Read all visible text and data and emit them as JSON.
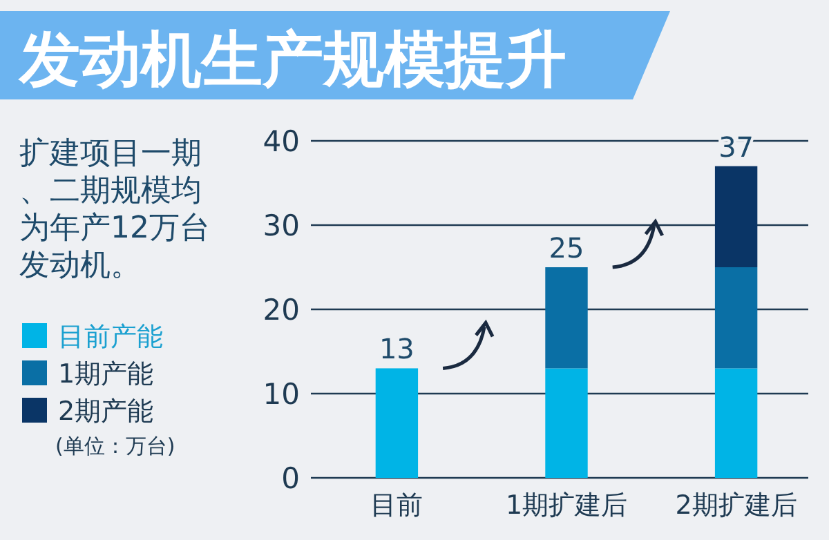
{
  "chart_data": {
    "type": "bar",
    "title": "发动机生产规模提升",
    "stacked": true,
    "categories": [
      "目前",
      "1期扩建后",
      "2期扩建后"
    ],
    "series": [
      {
        "name": "目前产能",
        "color": "#00b4e6",
        "values": [
          13,
          13,
          13
        ]
      },
      {
        "name": "1期产能",
        "color": "#0a6fa5",
        "values": [
          null,
          12,
          12
        ]
      },
      {
        "name": "2期产能",
        "color": "#0a3566",
        "values": [
          null,
          null,
          12
        ]
      }
    ],
    "totals": [
      "13",
      "25",
      "37"
    ],
    "ylim": [
      0,
      40
    ],
    "yticks": [
      0,
      10,
      20,
      30,
      40
    ],
    "grid": "y",
    "legend": "left",
    "annotations": [
      "扩建项目一期、二期规模均为年产12万台发动机。",
      "(单位：万台)"
    ]
  }
}
